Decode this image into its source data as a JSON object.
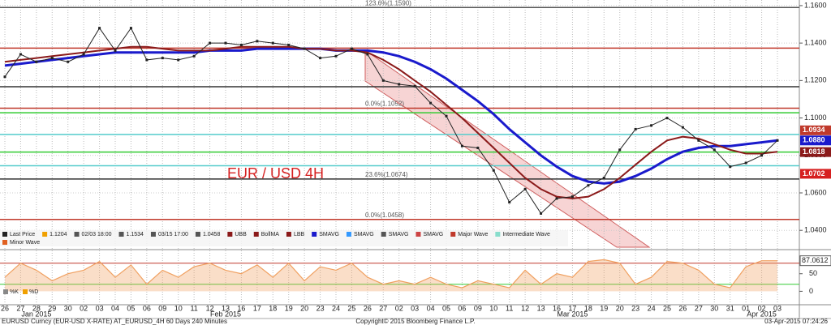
{
  "chart_data": {
    "type": "line",
    "annotation": "EUR / USD 4H",
    "categories": [
      "26",
      "27",
      "28",
      "29",
      "30",
      "02",
      "03",
      "04",
      "05",
      "06",
      "09",
      "10",
      "11",
      "12",
      "13",
      "16",
      "17",
      "18",
      "19",
      "20",
      "23",
      "24",
      "25",
      "26",
      "27",
      "02",
      "03",
      "04",
      "05",
      "06",
      "09",
      "10",
      "11",
      "12",
      "13",
      "16",
      "17",
      "18",
      "19",
      "20",
      "23",
      "24",
      "25",
      "26",
      "27",
      "30",
      "31",
      "01",
      "02",
      "03"
    ],
    "months": [
      "Jan 2015",
      "Feb 2015",
      "Mar 2015",
      "Apr 2015"
    ],
    "values": [
      1.122,
      1.134,
      1.13,
      1.132,
      1.13,
      1.134,
      1.148,
      1.136,
      1.148,
      1.131,
      1.132,
      1.131,
      1.133,
      1.14,
      1.14,
      1.139,
      1.141,
      1.14,
      1.139,
      1.137,
      1.132,
      1.133,
      1.137,
      1.134,
      1.12,
      1.118,
      1.117,
      1.108,
      1.101,
      1.085,
      1.084,
      1.072,
      1.055,
      1.062,
      1.049,
      1.057,
      1.058,
      1.064,
      1.068,
      1.083,
      1.094,
      1.096,
      1.1,
      1.095,
      1.088,
      1.083,
      1.074,
      1.076,
      1.08,
      1.088
    ],
    "color": "#222222",
    "overlays": [
      {
        "color": "#1a1acc",
        "values": [
          1.128,
          1.129,
          1.13,
          1.131,
          1.132,
          1.133,
          1.134,
          1.135,
          1.135,
          1.135,
          1.135,
          1.135,
          1.135,
          1.136,
          1.136,
          1.136,
          1.137,
          1.137,
          1.137,
          1.137,
          1.137,
          1.136,
          1.136,
          1.136,
          1.135,
          1.133,
          1.13,
          1.126,
          1.121,
          1.115,
          1.109,
          1.102,
          1.094,
          1.087,
          1.08,
          1.074,
          1.069,
          1.066,
          1.065,
          1.066,
          1.069,
          1.073,
          1.078,
          1.082,
          1.084,
          1.085,
          1.085,
          1.086,
          1.087,
          1.088
        ]
      },
      {
        "color": "#8b1a1a",
        "values": [
          1.13,
          1.131,
          1.132,
          1.133,
          1.134,
          1.135,
          1.136,
          1.137,
          1.138,
          1.138,
          1.137,
          1.136,
          1.136,
          1.136,
          1.137,
          1.138,
          1.138,
          1.138,
          1.138,
          1.137,
          1.137,
          1.136,
          1.136,
          1.135,
          1.131,
          1.126,
          1.12,
          1.114,
          1.107,
          1.1,
          1.092,
          1.084,
          1.076,
          1.068,
          1.062,
          1.058,
          1.057,
          1.058,
          1.062,
          1.068,
          1.075,
          1.082,
          1.088,
          1.09,
          1.089,
          1.086,
          1.083,
          1.081,
          1.081,
          1.082
        ]
      }
    ],
    "ylim": [
      1.031,
      1.163
    ],
    "yticks": [
      {
        "value": 1.16,
        "label": "1.1600"
      },
      {
        "value": 1.14,
        "label": "1.1400"
      },
      {
        "value": 1.12,
        "label": "1.1200"
      },
      {
        "value": 1.1,
        "label": "1.1000"
      },
      {
        "value": 1.08,
        "label": "1.0800"
      },
      {
        "value": 1.06,
        "label": "1.0600"
      },
      {
        "value": 1.04,
        "label": "1.0400"
      }
    ],
    "levels": [
      {
        "value": 1.159,
        "color": "#555555",
        "label": "123.6%(1.1590)"
      },
      {
        "value": 1.1373,
        "color": "#c0392b"
      },
      {
        "value": 1.1167,
        "color": "#333333"
      },
      {
        "value": 1.1052,
        "color": "#c0392b",
        "label": "0.0%(1.1052)"
      },
      {
        "value": 1.1028,
        "color": "#33cc33"
      },
      {
        "value": 1.0912,
        "color": "#55cccc"
      },
      {
        "value": 1.0818,
        "color": "#33cc33"
      },
      {
        "value": 1.0745,
        "color": "#55cccc"
      },
      {
        "value": 1.0674,
        "color": "#333333",
        "label": "23.6%(1.0674)"
      },
      {
        "value": 1.0458,
        "color": "#c0392b",
        "label": "0.0%(1.0458)"
      }
    ],
    "highlights": [
      {
        "value": 1.0934,
        "label": "1.0934",
        "color": "#c0392b"
      },
      {
        "value": 1.088,
        "label": "1.0880",
        "color": "#1a1acc"
      },
      {
        "value": 1.0818,
        "label": "1.0818",
        "color": "#8b1a1a"
      },
      {
        "value": 1.0702,
        "label": "1.0702",
        "color": "#d62020"
      }
    ],
    "legend": [
      "Last Price",
      "1.1204",
      "02/03 18:00",
      "1.1534",
      "03/15 17:00",
      "1.0458",
      "UBB",
      "BollMA",
      "LBB",
      "SMAVG",
      "SMAVG",
      "SMAVG",
      "SMAVG",
      "Major Wave",
      "Intermediate Wave",
      "Minor Wave"
    ],
    "oscillator": {
      "legend": [
        "%K",
        "%D"
      ],
      "color": "#f0a060",
      "values": [
        40,
        80,
        60,
        30,
        50,
        60,
        85,
        40,
        75,
        20,
        60,
        40,
        70,
        80,
        60,
        50,
        75,
        40,
        80,
        30,
        70,
        60,
        80,
        40,
        20,
        30,
        20,
        40,
        20,
        10,
        30,
        20,
        10,
        60,
        20,
        50,
        40,
        85,
        90,
        80,
        20,
        40,
        85,
        80,
        60,
        20,
        10,
        70,
        87,
        87
      ],
      "ylim": [
        -36,
        114
      ],
      "yticks": [
        50,
        0
      ],
      "last": {
        "value": 87.0612,
        "label": "87.0612"
      }
    },
    "footer": {
      "left": "EURUSD Curncy (EUR-USD X-RATE) AT_EURUSD_4H 60 Days 240 Minutes",
      "center": "Copyright© 2015 Bloomberg Finance L.P.",
      "right": "03-Apr-2015 07:24:26"
    }
  }
}
